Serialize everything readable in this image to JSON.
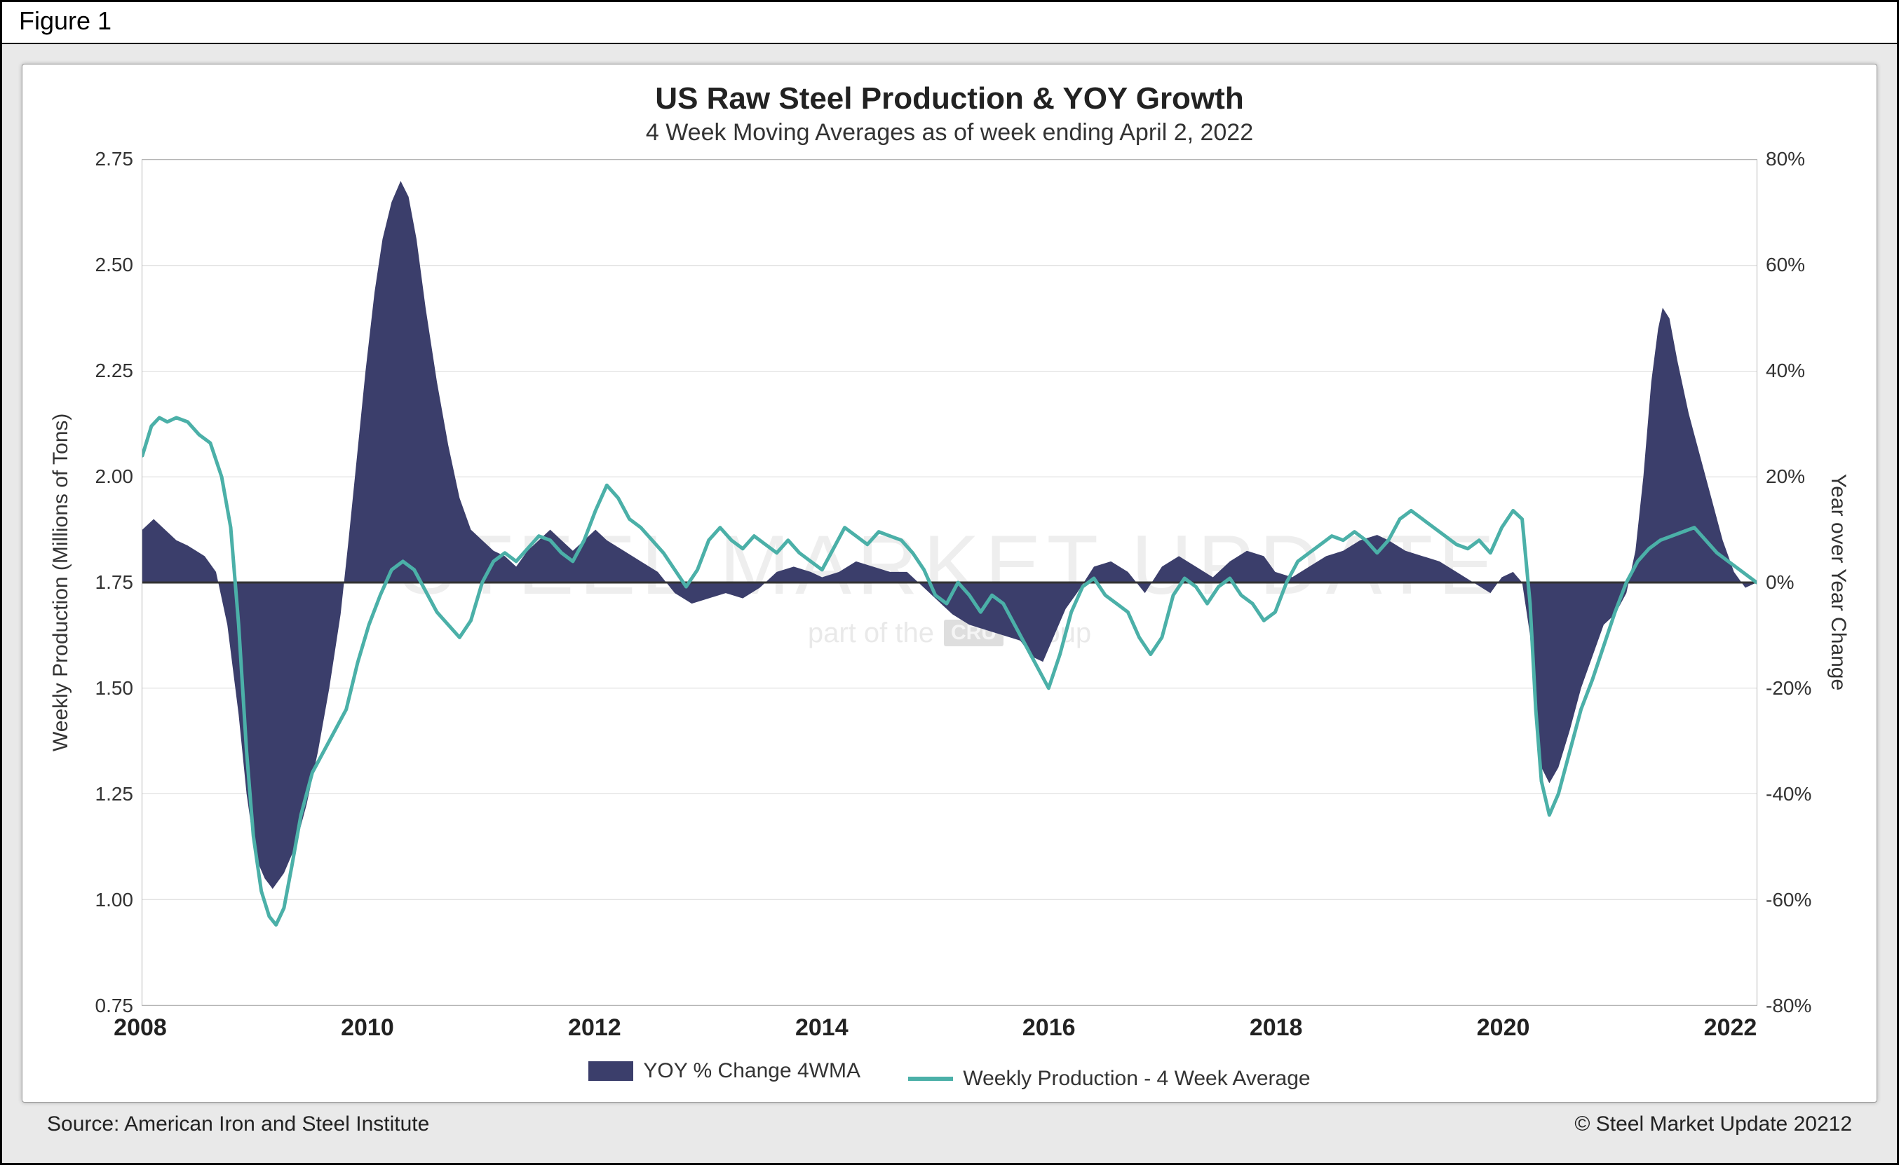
{
  "figure_label": "Figure 1",
  "chart": {
    "type": "area+line",
    "title": "US Raw Steel Production & YOY Growth",
    "subtitle": "4 Week Moving Averages as of week ending April 2, 2022",
    "title_fontsize": 44,
    "subtitle_fontsize": 34,
    "background_color": "#ffffff",
    "card_border_color": "#999999",
    "page_background": "#e9e9e9",
    "grid_color": "#d9d9d9",
    "zero_line_color": "#333333",
    "zero_line_width": 3,
    "x": {
      "label": null,
      "min": 2008.0,
      "max": 2022.25,
      "ticks": [
        2008,
        2010,
        2012,
        2014,
        2016,
        2018,
        2020,
        2022
      ],
      "tick_fontsize": 34,
      "tick_fontweight": "700"
    },
    "y_left": {
      "label": "Weekly Production (Millions of Tons)",
      "min": 0.75,
      "max": 2.75,
      "ticks": [
        0.75,
        1.0,
        1.25,
        1.5,
        1.75,
        2.0,
        2.25,
        2.5,
        2.75
      ],
      "tick_labels": [
        "0.75",
        "1.00",
        "1.25",
        "1.50",
        "1.75",
        "2.00",
        "2.25",
        "2.50",
        "2.75"
      ],
      "label_fontsize": 30,
      "tick_fontsize": 28
    },
    "y_right": {
      "label": "Year over Year Change",
      "min": -80,
      "max": 80,
      "ticks": [
        -80,
        -60,
        -40,
        -20,
        0,
        20,
        40,
        60,
        80
      ],
      "tick_labels": [
        "-80%",
        "-60%",
        "-40%",
        "-20%",
        "0%",
        "20%",
        "40%",
        "60%",
        "80%"
      ],
      "label_fontsize": 30,
      "tick_fontsize": 28
    },
    "series_area": {
      "name": "YOY % Change 4WMA",
      "axis": "right",
      "color": "#3b3e6b",
      "opacity": 1.0,
      "baseline": 0,
      "points": [
        [
          2008.0,
          10
        ],
        [
          2008.1,
          12
        ],
        [
          2008.2,
          10
        ],
        [
          2008.3,
          8
        ],
        [
          2008.4,
          7
        ],
        [
          2008.55,
          5
        ],
        [
          2008.65,
          2
        ],
        [
          2008.75,
          -8
        ],
        [
          2008.85,
          -25
        ],
        [
          2008.92,
          -40
        ],
        [
          2009.0,
          -52
        ],
        [
          2009.08,
          -56
        ],
        [
          2009.15,
          -58
        ],
        [
          2009.25,
          -55
        ],
        [
          2009.35,
          -50
        ],
        [
          2009.45,
          -42
        ],
        [
          2009.55,
          -32
        ],
        [
          2009.65,
          -20
        ],
        [
          2009.75,
          -6
        ],
        [
          2009.82,
          8
        ],
        [
          2009.9,
          25
        ],
        [
          2009.97,
          40
        ],
        [
          2010.05,
          55
        ],
        [
          2010.12,
          65
        ],
        [
          2010.2,
          72
        ],
        [
          2010.28,
          76
        ],
        [
          2010.35,
          73
        ],
        [
          2010.42,
          65
        ],
        [
          2010.5,
          52
        ],
        [
          2010.6,
          38
        ],
        [
          2010.7,
          26
        ],
        [
          2010.8,
          16
        ],
        [
          2010.9,
          10
        ],
        [
          2011.0,
          8
        ],
        [
          2011.1,
          6
        ],
        [
          2011.2,
          5
        ],
        [
          2011.3,
          3
        ],
        [
          2011.4,
          6
        ],
        [
          2011.5,
          8
        ],
        [
          2011.6,
          10
        ],
        [
          2011.7,
          8
        ],
        [
          2011.8,
          6
        ],
        [
          2011.9,
          8
        ],
        [
          2012.0,
          10
        ],
        [
          2012.1,
          8
        ],
        [
          2012.25,
          6
        ],
        [
          2012.4,
          4
        ],
        [
          2012.55,
          2
        ],
        [
          2012.7,
          -2
        ],
        [
          2012.85,
          -4
        ],
        [
          2013.0,
          -3
        ],
        [
          2013.15,
          -2
        ],
        [
          2013.3,
          -3
        ],
        [
          2013.45,
          -1
        ],
        [
          2013.6,
          2
        ],
        [
          2013.75,
          3
        ],
        [
          2013.9,
          2
        ],
        [
          2014.0,
          1
        ],
        [
          2014.15,
          2
        ],
        [
          2014.3,
          4
        ],
        [
          2014.45,
          3
        ],
        [
          2014.6,
          2
        ],
        [
          2014.75,
          2
        ],
        [
          2014.9,
          -1
        ],
        [
          2015.0,
          -3
        ],
        [
          2015.15,
          -6
        ],
        [
          2015.3,
          -8
        ],
        [
          2015.45,
          -9
        ],
        [
          2015.6,
          -10
        ],
        [
          2015.75,
          -11
        ],
        [
          2015.85,
          -14
        ],
        [
          2015.95,
          -15
        ],
        [
          2016.05,
          -10
        ],
        [
          2016.15,
          -5
        ],
        [
          2016.25,
          -2
        ],
        [
          2016.4,
          3
        ],
        [
          2016.55,
          4
        ],
        [
          2016.7,
          2
        ],
        [
          2016.85,
          -2
        ],
        [
          2017.0,
          3
        ],
        [
          2017.15,
          5
        ],
        [
          2017.3,
          3
        ],
        [
          2017.45,
          1
        ],
        [
          2017.6,
          4
        ],
        [
          2017.75,
          6
        ],
        [
          2017.9,
          5
        ],
        [
          2018.0,
          2
        ],
        [
          2018.15,
          1
        ],
        [
          2018.3,
          3
        ],
        [
          2018.45,
          5
        ],
        [
          2018.6,
          6
        ],
        [
          2018.75,
          8
        ],
        [
          2018.9,
          9
        ],
        [
          2019.0,
          8
        ],
        [
          2019.15,
          6
        ],
        [
          2019.3,
          5
        ],
        [
          2019.45,
          4
        ],
        [
          2019.6,
          2
        ],
        [
          2019.75,
          0
        ],
        [
          2019.9,
          -2
        ],
        [
          2020.0,
          1
        ],
        [
          2020.1,
          2
        ],
        [
          2020.18,
          0
        ],
        [
          2020.25,
          -10
        ],
        [
          2020.3,
          -25
        ],
        [
          2020.35,
          -35
        ],
        [
          2020.42,
          -38
        ],
        [
          2020.5,
          -35
        ],
        [
          2020.6,
          -28
        ],
        [
          2020.7,
          -20
        ],
        [
          2020.8,
          -14
        ],
        [
          2020.9,
          -8
        ],
        [
          2021.0,
          -6
        ],
        [
          2021.1,
          -2
        ],
        [
          2021.18,
          6
        ],
        [
          2021.25,
          20
        ],
        [
          2021.32,
          38
        ],
        [
          2021.38,
          48
        ],
        [
          2021.42,
          52
        ],
        [
          2021.48,
          50
        ],
        [
          2021.55,
          42
        ],
        [
          2021.65,
          32
        ],
        [
          2021.75,
          24
        ],
        [
          2021.85,
          16
        ],
        [
          2021.95,
          8
        ],
        [
          2022.05,
          2
        ],
        [
          2022.15,
          -1
        ],
        [
          2022.25,
          0
        ]
      ]
    },
    "series_line": {
      "name": "Weekly Production - 4 Week Average",
      "axis": "left",
      "color": "#4bb0a8",
      "width": 5,
      "points": [
        [
          2008.0,
          2.05
        ],
        [
          2008.08,
          2.12
        ],
        [
          2008.15,
          2.14
        ],
        [
          2008.22,
          2.13
        ],
        [
          2008.3,
          2.14
        ],
        [
          2008.4,
          2.13
        ],
        [
          2008.5,
          2.1
        ],
        [
          2008.6,
          2.08
        ],
        [
          2008.7,
          2.0
        ],
        [
          2008.78,
          1.88
        ],
        [
          2008.85,
          1.65
        ],
        [
          2008.92,
          1.35
        ],
        [
          2008.98,
          1.15
        ],
        [
          2009.05,
          1.02
        ],
        [
          2009.12,
          0.96
        ],
        [
          2009.18,
          0.94
        ],
        [
          2009.25,
          0.98
        ],
        [
          2009.32,
          1.08
        ],
        [
          2009.4,
          1.2
        ],
        [
          2009.5,
          1.3
        ],
        [
          2009.6,
          1.35
        ],
        [
          2009.7,
          1.4
        ],
        [
          2009.8,
          1.45
        ],
        [
          2009.9,
          1.56
        ],
        [
          2010.0,
          1.65
        ],
        [
          2010.1,
          1.72
        ],
        [
          2010.2,
          1.78
        ],
        [
          2010.3,
          1.8
        ],
        [
          2010.4,
          1.78
        ],
        [
          2010.5,
          1.73
        ],
        [
          2010.6,
          1.68
        ],
        [
          2010.7,
          1.65
        ],
        [
          2010.8,
          1.62
        ],
        [
          2010.9,
          1.66
        ],
        [
          2011.0,
          1.75
        ],
        [
          2011.1,
          1.8
        ],
        [
          2011.2,
          1.82
        ],
        [
          2011.3,
          1.8
        ],
        [
          2011.4,
          1.83
        ],
        [
          2011.5,
          1.86
        ],
        [
          2011.6,
          1.85
        ],
        [
          2011.7,
          1.82
        ],
        [
          2011.8,
          1.8
        ],
        [
          2011.9,
          1.85
        ],
        [
          2012.0,
          1.92
        ],
        [
          2012.1,
          1.98
        ],
        [
          2012.2,
          1.95
        ],
        [
          2012.3,
          1.9
        ],
        [
          2012.4,
          1.88
        ],
        [
          2012.5,
          1.85
        ],
        [
          2012.6,
          1.82
        ],
        [
          2012.7,
          1.78
        ],
        [
          2012.8,
          1.74
        ],
        [
          2012.9,
          1.78
        ],
        [
          2013.0,
          1.85
        ],
        [
          2013.1,
          1.88
        ],
        [
          2013.2,
          1.85
        ],
        [
          2013.3,
          1.83
        ],
        [
          2013.4,
          1.86
        ],
        [
          2013.5,
          1.84
        ],
        [
          2013.6,
          1.82
        ],
        [
          2013.7,
          1.85
        ],
        [
          2013.8,
          1.82
        ],
        [
          2013.9,
          1.8
        ],
        [
          2014.0,
          1.78
        ],
        [
          2014.1,
          1.83
        ],
        [
          2014.2,
          1.88
        ],
        [
          2014.3,
          1.86
        ],
        [
          2014.4,
          1.84
        ],
        [
          2014.5,
          1.87
        ],
        [
          2014.6,
          1.86
        ],
        [
          2014.7,
          1.85
        ],
        [
          2014.8,
          1.82
        ],
        [
          2014.9,
          1.78
        ],
        [
          2015.0,
          1.72
        ],
        [
          2015.1,
          1.7
        ],
        [
          2015.2,
          1.75
        ],
        [
          2015.3,
          1.72
        ],
        [
          2015.4,
          1.68
        ],
        [
          2015.5,
          1.72
        ],
        [
          2015.6,
          1.7
        ],
        [
          2015.7,
          1.65
        ],
        [
          2015.8,
          1.6
        ],
        [
          2015.9,
          1.55
        ],
        [
          2016.0,
          1.5
        ],
        [
          2016.1,
          1.58
        ],
        [
          2016.2,
          1.68
        ],
        [
          2016.3,
          1.74
        ],
        [
          2016.4,
          1.76
        ],
        [
          2016.5,
          1.72
        ],
        [
          2016.6,
          1.7
        ],
        [
          2016.7,
          1.68
        ],
        [
          2016.8,
          1.62
        ],
        [
          2016.9,
          1.58
        ],
        [
          2017.0,
          1.62
        ],
        [
          2017.1,
          1.72
        ],
        [
          2017.2,
          1.76
        ],
        [
          2017.3,
          1.74
        ],
        [
          2017.4,
          1.7
        ],
        [
          2017.5,
          1.74
        ],
        [
          2017.6,
          1.76
        ],
        [
          2017.7,
          1.72
        ],
        [
          2017.8,
          1.7
        ],
        [
          2017.9,
          1.66
        ],
        [
          2018.0,
          1.68
        ],
        [
          2018.1,
          1.75
        ],
        [
          2018.2,
          1.8
        ],
        [
          2018.3,
          1.82
        ],
        [
          2018.4,
          1.84
        ],
        [
          2018.5,
          1.86
        ],
        [
          2018.6,
          1.85
        ],
        [
          2018.7,
          1.87
        ],
        [
          2018.8,
          1.85
        ],
        [
          2018.9,
          1.82
        ],
        [
          2019.0,
          1.85
        ],
        [
          2019.1,
          1.9
        ],
        [
          2019.2,
          1.92
        ],
        [
          2019.3,
          1.9
        ],
        [
          2019.4,
          1.88
        ],
        [
          2019.5,
          1.86
        ],
        [
          2019.6,
          1.84
        ],
        [
          2019.7,
          1.83
        ],
        [
          2019.8,
          1.85
        ],
        [
          2019.9,
          1.82
        ],
        [
          2020.0,
          1.88
        ],
        [
          2020.1,
          1.92
        ],
        [
          2020.18,
          1.9
        ],
        [
          2020.25,
          1.7
        ],
        [
          2020.3,
          1.45
        ],
        [
          2020.35,
          1.28
        ],
        [
          2020.42,
          1.2
        ],
        [
          2020.5,
          1.25
        ],
        [
          2020.6,
          1.35
        ],
        [
          2020.7,
          1.45
        ],
        [
          2020.8,
          1.52
        ],
        [
          2020.9,
          1.6
        ],
        [
          2021.0,
          1.68
        ],
        [
          2021.1,
          1.75
        ],
        [
          2021.2,
          1.8
        ],
        [
          2021.3,
          1.83
        ],
        [
          2021.4,
          1.85
        ],
        [
          2021.5,
          1.86
        ],
        [
          2021.6,
          1.87
        ],
        [
          2021.7,
          1.88
        ],
        [
          2021.8,
          1.85
        ],
        [
          2021.9,
          1.82
        ],
        [
          2022.0,
          1.8
        ],
        [
          2022.1,
          1.78
        ],
        [
          2022.2,
          1.76
        ],
        [
          2022.25,
          1.75
        ]
      ]
    },
    "legend": {
      "items": [
        {
          "swatch": "area",
          "color": "#3b3e6b",
          "label": "YOY % Change 4WMA"
        },
        {
          "swatch": "line",
          "color": "#4bb0a8",
          "label": "Weekly Production - 4 Week Average"
        }
      ],
      "fontsize": 30
    },
    "watermark": {
      "main": "STEEL MARKET UPDATE",
      "sub_prefix": "part of the",
      "badge": "CRU",
      "sub_suffix": "Group",
      "color": "#cfcfcf"
    }
  },
  "footer": {
    "source": "Source: American Iron and Steel Institute",
    "copyright": "© Steel Market Update 20212"
  }
}
